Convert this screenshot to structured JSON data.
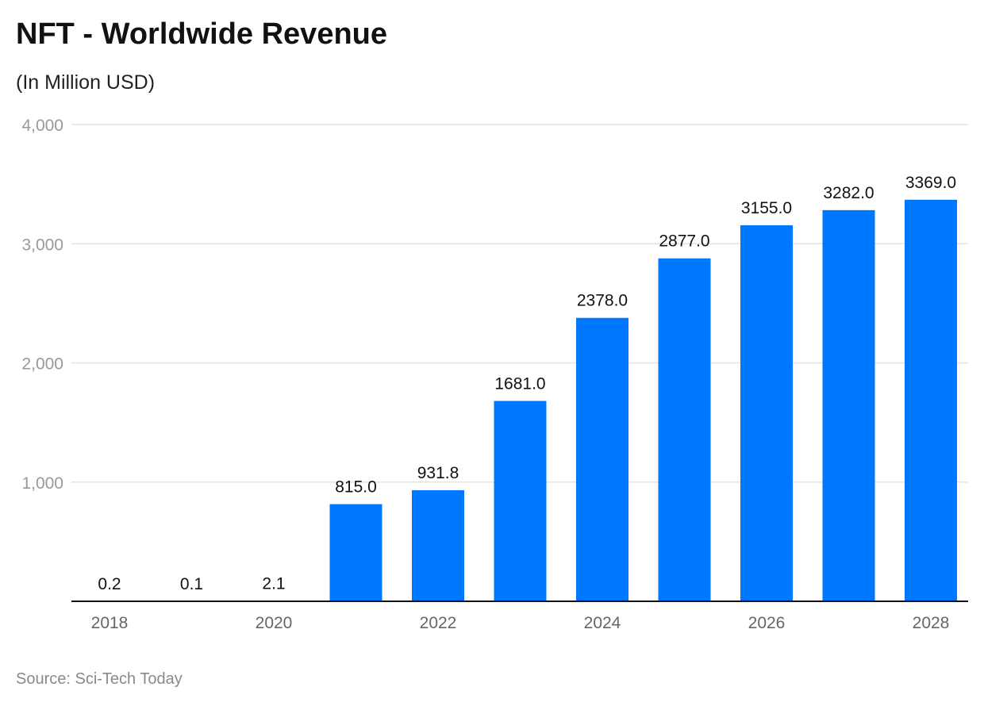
{
  "chart_data": {
    "type": "bar",
    "title": "NFT - Worldwide Revenue",
    "subtitle": "(In Million USD)",
    "source": "Source: Sci-Tech Today",
    "categories": [
      "2018",
      "2019",
      "2020",
      "2021",
      "2022",
      "2023",
      "2024",
      "2025",
      "2026",
      "2027",
      "2028"
    ],
    "x_tick_labels": [
      "2018",
      "",
      "2020",
      "",
      "2022",
      "",
      "2024",
      "",
      "2026",
      "",
      "2028"
    ],
    "values": [
      0.2,
      0.1,
      2.1,
      815.0,
      931.8,
      1681.0,
      2378.0,
      2877.0,
      3155.0,
      3282.0,
      3369.0
    ],
    "data_labels": [
      "0.2",
      "0.1",
      "2.1",
      "815.0",
      "931.8",
      "1681.0",
      "2378.0",
      "2877.0",
      "3155.0",
      "3282.0",
      "3369.0"
    ],
    "y_ticks": [
      1000,
      2000,
      3000,
      4000
    ],
    "y_tick_labels": [
      "1,000",
      "2,000",
      "3,000",
      "4,000"
    ],
    "ylim": [
      0,
      4000
    ],
    "grid": true,
    "bar_color": "#0077FF"
  }
}
